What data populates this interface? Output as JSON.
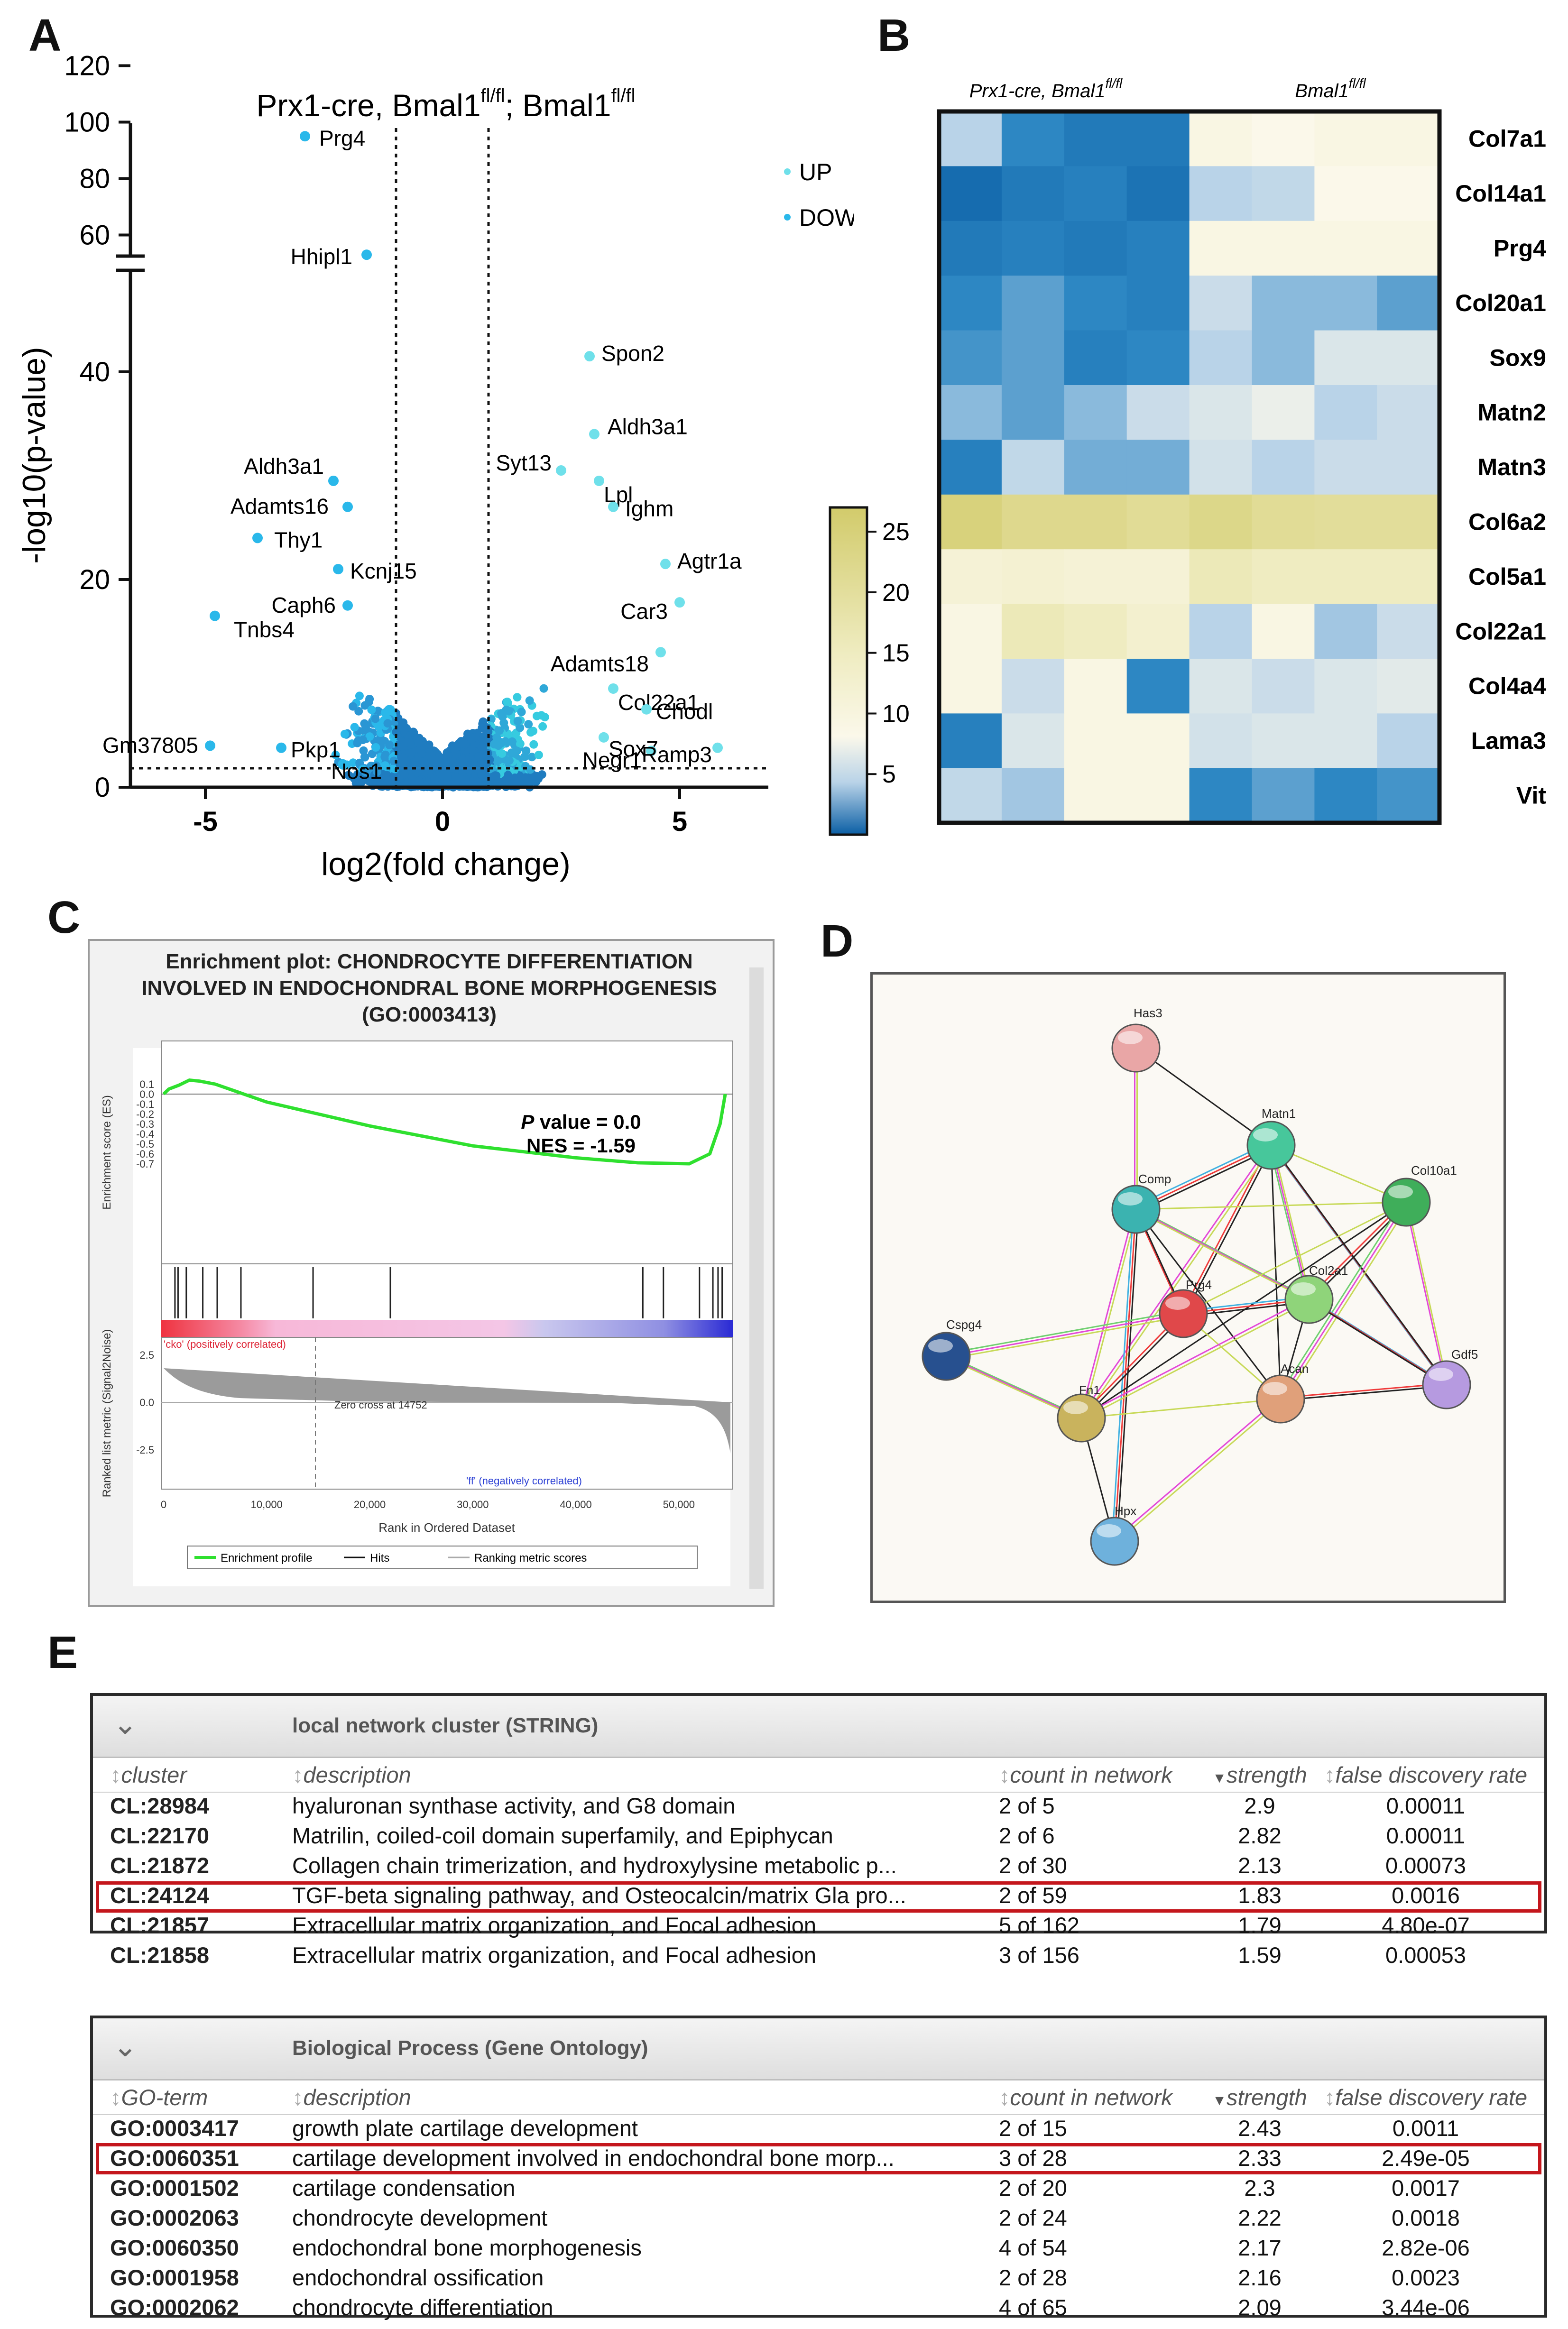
{
  "labels": {
    "a": "A",
    "b": "B",
    "c": "C",
    "d": "D",
    "e": "E"
  },
  "panelA": {
    "title_main": "Prx1-cre, Bmal1",
    "title_sup1": "fl/fl",
    "title_sep": ";",
    "title_mid": " Bmal1",
    "title_sup2": "fl/fl",
    "ylabel": "-log10(p-value)",
    "xlabel": "log2(fold change)",
    "legend": [
      {
        "label": "UP",
        "color": "#6fe0ea"
      },
      {
        "label": "DOWN",
        "color": "#2ab8ea"
      }
    ],
    "yticks_lower": [
      "0",
      "20",
      "40"
    ],
    "yticks_upper": [
      "60",
      "80",
      "100",
      "120"
    ],
    "xticks": [
      "-5",
      "0",
      "5"
    ],
    "up_genes": [
      {
        "gene": "Spon2",
        "x": 3.1,
        "y": 41.5
      },
      {
        "gene": "Aldh3a1",
        "x": 3.2,
        "y": 34.0
      },
      {
        "gene": "Syt13",
        "x": 2.5,
        "y": 30.5
      },
      {
        "gene": "Lpl",
        "x": 3.3,
        "y": 29.5
      },
      {
        "gene": "Ighm",
        "x": 3.6,
        "y": 27.0
      },
      {
        "gene": "Agtr1a",
        "x": 4.7,
        "y": 21.5
      },
      {
        "gene": "Car3",
        "x": 5.0,
        "y": 17.8
      },
      {
        "gene": "Adamts18",
        "x": 4.6,
        "y": 13.0
      },
      {
        "gene": "Col22a1",
        "x": 3.6,
        "y": 9.5
      },
      {
        "gene": "Chodl",
        "x": 4.3,
        "y": 7.5
      },
      {
        "gene": "Sox7",
        "x": 3.4,
        "y": 4.8
      },
      {
        "gene": "Negr1",
        "x": 4.4,
        "y": 3.5
      },
      {
        "gene": "Ramp3",
        "x": 5.8,
        "y": 3.8
      }
    ],
    "down_genes": [
      {
        "gene": "Prg4",
        "x": -2.9,
        "y": 95.0
      },
      {
        "gene": "Hhipl1",
        "x": -1.6,
        "y": 53.0
      },
      {
        "gene": "Aldh3a1",
        "x": -2.3,
        "y": 29.5
      },
      {
        "gene": "Adamts16",
        "x": -2.0,
        "y": 27.0
      },
      {
        "gene": "Thy1",
        "x": -3.9,
        "y": 24.0
      },
      {
        "gene": "Kcnj15",
        "x": -2.2,
        "y": 21.0
      },
      {
        "gene": "Caph6",
        "x": -2.0,
        "y": 17.5
      },
      {
        "gene": "Tnbs4",
        "x": -4.8,
        "y": 16.5
      },
      {
        "gene": "Gm37805",
        "x": -4.9,
        "y": 4.0
      },
      {
        "gene": "Pkp1",
        "x": -3.4,
        "y": 3.8
      },
      {
        "gene": "Nos1",
        "x": -2.1,
        "y": 2.2
      }
    ]
  },
  "panelB": {
    "group1_label": "Prx1-cre, Bmal1",
    "group1_sup": "fl/fl",
    "group2_label": "Bmal1",
    "group2_sup": "fl/fl",
    "colorbar_ticks": [
      "5",
      "10",
      "15",
      "20",
      "25"
    ],
    "genes": [
      "Col7a1",
      "Col14a1",
      "Prg4",
      "Col20a1",
      "Sox9",
      "Matn2",
      "Matn3",
      "Col6a2",
      "Col5a1",
      "Col22a1",
      "Col4a4",
      "Lama3",
      "Vit"
    ],
    "values": [
      [
        6,
        3,
        2,
        2,
        11,
        10,
        11,
        11
      ],
      [
        1,
        2,
        2.5,
        1.5,
        6,
        6.5,
        10,
        10
      ],
      [
        2,
        2.5,
        2,
        2.5,
        11,
        11,
        11,
        11
      ],
      [
        3,
        4,
        3,
        2.5,
        7,
        5,
        5,
        4
      ],
      [
        3.5,
        4,
        2.5,
        3,
        6,
        5,
        8,
        8
      ],
      [
        5,
        4,
        5,
        7,
        8,
        9,
        6,
        7
      ],
      [
        2.5,
        6.5,
        4.5,
        4.5,
        7.5,
        6,
        7,
        7
      ],
      [
        24,
        22,
        22,
        21,
        22.5,
        21,
        20.5,
        20.5
      ],
      [
        13,
        13.5,
        13,
        13,
        17,
        16,
        16,
        16
      ],
      [
        11,
        17,
        16,
        14,
        6,
        11,
        5.5,
        7
      ],
      [
        11,
        7,
        11,
        3,
        8,
        7,
        8,
        8.5
      ],
      [
        2.5,
        8,
        11,
        11,
        7.5,
        8,
        8,
        6
      ],
      [
        6.5,
        5.5,
        11,
        11,
        3,
        4,
        3,
        3.5
      ]
    ]
  },
  "panelC": {
    "title_line1": "Enrichment plot: CHONDROCYTE DIFFERENTIATION",
    "title_line2": "INVOLVED IN ENDOCHONDRAL BONE MORPHOGENESIS",
    "title_line3": "(GO:0003413)",
    "pvalue_label": "P",
    "pvalue_rest": " value = 0.0",
    "nes": "NES = -1.59",
    "es_ylabel": "Enrichment score (ES)",
    "rank_ylabel": "Ranked list metric (Signal2Noise)",
    "xlabel": "Rank in Ordered Dataset",
    "es_ticks": [
      "0.1",
      "0.0",
      "-0.1",
      "-0.2",
      "-0.3",
      "-0.4",
      "-0.5",
      "-0.6",
      "-0.7"
    ],
    "rank_ticks": [
      "2.5",
      "0.0",
      "-2.5"
    ],
    "x_ticks": [
      "0",
      "10,000",
      "20,000",
      "30,000",
      "40,000",
      "50,000"
    ],
    "pos_label": "'cko' (positively correlated)",
    "neg_label": "'ff' (negatively correlated)",
    "zero_cross": "Zero cross at 14752",
    "legend": [
      "Enrichment profile",
      "Hits",
      "Ranking metric scores"
    ],
    "es_curve": [
      {
        "rank": 0,
        "es": 0.0
      },
      {
        "rank": 500,
        "es": 0.05
      },
      {
        "rank": 1500,
        "es": 0.09
      },
      {
        "rank": 2500,
        "es": 0.14
      },
      {
        "rank": 3500,
        "es": 0.13
      },
      {
        "rank": 5000,
        "es": 0.1
      },
      {
        "rank": 10000,
        "es": -0.08
      },
      {
        "rank": 20000,
        "es": -0.32
      },
      {
        "rank": 30000,
        "es": -0.52
      },
      {
        "rank": 40000,
        "es": -0.64
      },
      {
        "rank": 46000,
        "es": -0.69
      },
      {
        "rank": 51000,
        "es": -0.7
      },
      {
        "rank": 53000,
        "es": -0.6
      },
      {
        "rank": 54000,
        "es": -0.3
      },
      {
        "rank": 54500,
        "es": 0.0
      }
    ],
    "hits": [
      1100,
      1400,
      2200,
      3800,
      5200,
      7500,
      14500,
      22000,
      46500,
      48500,
      52000,
      53300,
      53800,
      54200
    ]
  },
  "panelD": {
    "nodes": [
      {
        "id": "Has3",
        "color": "#e9a6a6"
      },
      {
        "id": "Matn1",
        "color": "#47c79b"
      },
      {
        "id": "Comp",
        "color": "#3bb3b0"
      },
      {
        "id": "Col10a1",
        "color": "#3fae5a"
      },
      {
        "id": "Prg4",
        "color": "#e0484a"
      },
      {
        "id": "Col2a1",
        "color": "#8fd47a"
      },
      {
        "id": "Cspg4",
        "color": "#27508f"
      },
      {
        "id": "Gdf5",
        "color": "#b69ae0"
      },
      {
        "id": "Fn1",
        "color": "#c9b35d"
      },
      {
        "id": "Acan",
        "color": "#e0a07a"
      },
      {
        "id": "Hpx",
        "color": "#6eb1dc"
      }
    ],
    "edges": [
      [
        "Has3",
        "Matn1"
      ],
      [
        "Has3",
        "Comp"
      ],
      [
        "Matn1",
        "Comp"
      ],
      [
        "Matn1",
        "Col10a1"
      ],
      [
        "Matn1",
        "Prg4"
      ],
      [
        "Matn1",
        "Col2a1"
      ],
      [
        "Matn1",
        "Acan"
      ],
      [
        "Matn1",
        "Fn1"
      ],
      [
        "Matn1",
        "Gdf5"
      ],
      [
        "Comp",
        "Col10a1"
      ],
      [
        "Comp",
        "Prg4"
      ],
      [
        "Comp",
        "Col2a1"
      ],
      [
        "Comp",
        "Acan"
      ],
      [
        "Comp",
        "Fn1"
      ],
      [
        "Comp",
        "Hpx"
      ],
      [
        "Col10a1",
        "Prg4"
      ],
      [
        "Col10a1",
        "Col2a1"
      ],
      [
        "Col10a1",
        "Acan"
      ],
      [
        "Col10a1",
        "Fn1"
      ],
      [
        "Col10a1",
        "Gdf5"
      ],
      [
        "Prg4",
        "Col2a1"
      ],
      [
        "Prg4",
        "Acan"
      ],
      [
        "Prg4",
        "Fn1"
      ],
      [
        "Prg4",
        "Cspg4"
      ],
      [
        "Col2a1",
        "Acan"
      ],
      [
        "Col2a1",
        "Fn1"
      ],
      [
        "Col2a1",
        "Gdf5"
      ],
      [
        "Acan",
        "Fn1"
      ],
      [
        "Acan",
        "Gdf5"
      ],
      [
        "Fn1",
        "Cspg4"
      ],
      [
        "Fn1",
        "Hpx"
      ],
      [
        "Acan",
        "Hpx"
      ]
    ]
  },
  "panelE": {
    "table1": {
      "title": "local network cluster (STRING)",
      "headers": [
        "cluster",
        "description",
        "count in network",
        "strength",
        "false discovery rate"
      ],
      "rows": [
        [
          "CL:28984",
          "hyaluronan synthase activity, and G8 domain",
          "2 of 5",
          "2.9",
          "0.00011"
        ],
        [
          "CL:22170",
          "Matrilin, coiled-coil domain superfamily, and Epiphycan",
          "2 of 6",
          "2.82",
          "0.00011"
        ],
        [
          "CL:21872",
          "Collagen chain trimerization, and hydroxylysine metabolic p...",
          "2 of 30",
          "2.13",
          "0.00073"
        ],
        [
          "CL:24124",
          "TGF-beta signaling pathway, and Osteocalcin/matrix Gla pro...",
          "2 of 59",
          "1.83",
          "0.0016"
        ],
        [
          "CL:21857",
          "Extracellular matrix organization, and Focal adhesion",
          "5 of 162",
          "1.79",
          "4.80e-07"
        ],
        [
          "CL:21858",
          "Extracellular matrix organization, and Focal adhesion",
          "3 of 156",
          "1.59",
          "0.00053"
        ]
      ]
    },
    "table2": {
      "title": "Biological Process (Gene Ontology)",
      "headers": [
        "GO-term",
        "description",
        "count in network",
        "strength",
        "false discovery rate"
      ],
      "rows": [
        [
          "GO:0003417",
          "growth plate cartilage development",
          "2 of 15",
          "2.43",
          "0.0011"
        ],
        [
          "GO:0060351",
          "cartilage development involved in endochondral bone morp...",
          "3 of 28",
          "2.33",
          "2.49e-05"
        ],
        [
          "GO:0001502",
          "cartilage condensation",
          "2 of 20",
          "2.3",
          "0.0017"
        ],
        [
          "GO:0002063",
          "chondrocyte development",
          "2 of 24",
          "2.22",
          "0.0018"
        ],
        [
          "GO:0060350",
          "endochondral bone morphogenesis",
          "4 of 54",
          "2.17",
          "2.82e-06"
        ],
        [
          "GO:0001958",
          "endochondral ossification",
          "2 of 28",
          "2.16",
          "0.0023"
        ],
        [
          "GO:0002062",
          "chondrocyte differentiation",
          "4 of 65",
          "2.09",
          "3.44e-06"
        ]
      ]
    }
  }
}
